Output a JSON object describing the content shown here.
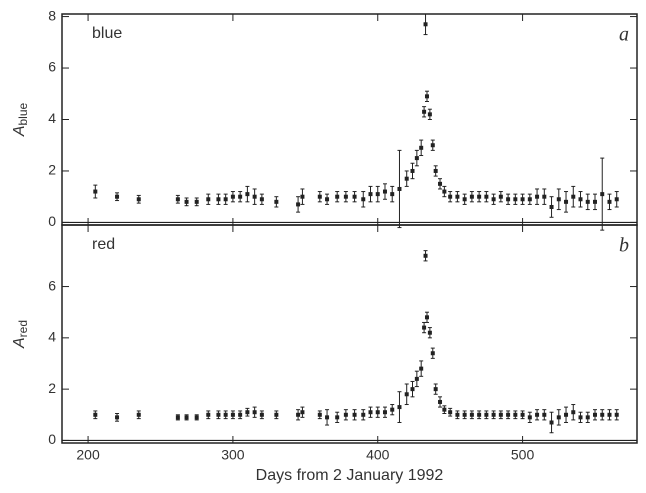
{
  "chart_data": [
    {
      "type": "scatter",
      "panel_label": "a",
      "band_label": "blue",
      "ylabel": "A",
      "ylabel_subscript": "blue",
      "xlim": [
        182,
        579
      ],
      "xticks": [
        200,
        300,
        400,
        500
      ],
      "ylim": [
        -0.1,
        8.1
      ],
      "yticks": [
        0,
        2,
        4,
        6,
        8
      ],
      "color": "#222222",
      "x": [
        205,
        220,
        235,
        262,
        268,
        275,
        283,
        290,
        295,
        300,
        305,
        310,
        315,
        320,
        330,
        345,
        348,
        360,
        365,
        372,
        378,
        384,
        390,
        395,
        400,
        405,
        410,
        415,
        420,
        424,
        427,
        430,
        432,
        433,
        434,
        436,
        438,
        440,
        443,
        446,
        450,
        455,
        460,
        465,
        470,
        475,
        480,
        485,
        490,
        495,
        500,
        505,
        510,
        515,
        520,
        525,
        530,
        535,
        540,
        545,
        550,
        555,
        560,
        565
      ],
      "values": [
        1.2,
        1.0,
        0.9,
        0.9,
        0.8,
        0.8,
        0.9,
        0.9,
        0.9,
        1.0,
        1.0,
        1.1,
        1.0,
        0.9,
        0.8,
        0.7,
        1.0,
        1.0,
        0.9,
        1.0,
        1.0,
        1.0,
        0.9,
        1.1,
        1.1,
        1.2,
        1.1,
        1.3,
        1.7,
        2.0,
        2.5,
        2.9,
        4.3,
        7.7,
        4.9,
        4.2,
        3.0,
        2.0,
        1.5,
        1.2,
        1.0,
        1.0,
        0.9,
        1.0,
        1.0,
        1.0,
        0.9,
        1.0,
        0.9,
        0.9,
        0.9,
        0.9,
        1.0,
        1.0,
        0.6,
        0.9,
        0.8,
        1.0,
        0.9,
        0.8,
        0.8,
        1.1,
        0.8,
        0.9
      ],
      "errors": [
        0.25,
        0.15,
        0.15,
        0.15,
        0.15,
        0.15,
        0.2,
        0.2,
        0.2,
        0.2,
        0.2,
        0.3,
        0.3,
        0.2,
        0.2,
        0.3,
        0.3,
        0.2,
        0.2,
        0.2,
        0.2,
        0.2,
        0.3,
        0.3,
        0.3,
        0.3,
        0.3,
        1.5,
        0.3,
        0.3,
        0.3,
        0.3,
        0.2,
        0.4,
        0.2,
        0.2,
        0.2,
        0.2,
        0.2,
        0.2,
        0.2,
        0.2,
        0.2,
        0.2,
        0.2,
        0.2,
        0.2,
        0.2,
        0.2,
        0.2,
        0.2,
        0.2,
        0.3,
        0.3,
        0.4,
        0.4,
        0.4,
        0.4,
        0.3,
        0.3,
        0.3,
        1.4,
        0.3,
        0.3
      ]
    },
    {
      "type": "scatter",
      "panel_label": "b",
      "band_label": "red",
      "ylabel": "A",
      "ylabel_subscript": "red",
      "xlabel": "Days from 2 January 1992",
      "xlim": [
        182,
        579
      ],
      "xticks": [
        200,
        300,
        400,
        500
      ],
      "ylim": [
        -0.1,
        8.4
      ],
      "yticks": [
        0,
        2,
        4,
        6
      ],
      "color": "#222222",
      "x": [
        205,
        220,
        235,
        262,
        268,
        275,
        283,
        290,
        295,
        300,
        305,
        310,
        315,
        320,
        330,
        345,
        348,
        360,
        365,
        372,
        378,
        384,
        390,
        395,
        400,
        405,
        410,
        415,
        420,
        424,
        427,
        430,
        432,
        433,
        434,
        436,
        438,
        440,
        443,
        446,
        450,
        455,
        460,
        465,
        470,
        475,
        480,
        485,
        490,
        495,
        500,
        505,
        510,
        515,
        520,
        525,
        530,
        535,
        540,
        545,
        550,
        555,
        560,
        565
      ],
      "values": [
        1.0,
        0.9,
        1.0,
        0.9,
        0.9,
        0.9,
        1.0,
        1.0,
        1.0,
        1.0,
        1.0,
        1.1,
        1.1,
        1.0,
        1.0,
        1.0,
        1.1,
        1.0,
        0.9,
        0.9,
        1.0,
        1.0,
        1.0,
        1.1,
        1.1,
        1.1,
        1.2,
        1.3,
        1.8,
        2.0,
        2.4,
        2.8,
        4.4,
        7.2,
        4.8,
        4.2,
        3.4,
        2.0,
        1.5,
        1.2,
        1.1,
        1.0,
        1.0,
        1.0,
        1.0,
        1.0,
        1.0,
        1.0,
        1.0,
        1.0,
        1.0,
        0.9,
        1.0,
        1.0,
        0.7,
        0.9,
        1.0,
        1.1,
        0.9,
        0.9,
        1.0,
        1.0,
        1.0,
        1.0
      ],
      "errors": [
        0.15,
        0.15,
        0.15,
        0.1,
        0.1,
        0.1,
        0.15,
        0.15,
        0.15,
        0.15,
        0.15,
        0.15,
        0.2,
        0.15,
        0.15,
        0.2,
        0.2,
        0.15,
        0.3,
        0.2,
        0.2,
        0.2,
        0.2,
        0.2,
        0.2,
        0.2,
        0.2,
        0.6,
        0.4,
        0.3,
        0.3,
        0.3,
        0.2,
        0.2,
        0.2,
        0.2,
        0.2,
        0.2,
        0.2,
        0.15,
        0.15,
        0.15,
        0.15,
        0.15,
        0.15,
        0.15,
        0.15,
        0.15,
        0.15,
        0.15,
        0.15,
        0.2,
        0.2,
        0.2,
        0.4,
        0.3,
        0.3,
        0.3,
        0.2,
        0.2,
        0.2,
        0.2,
        0.2,
        0.2
      ]
    }
  ]
}
